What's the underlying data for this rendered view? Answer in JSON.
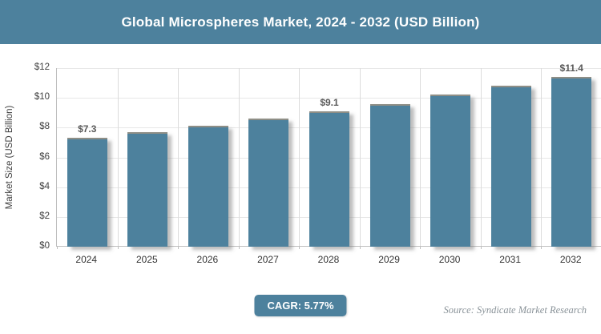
{
  "header": {
    "title": "Global Microspheres Market, 2024 - 2032 (USD Billion)"
  },
  "chart_data": {
    "type": "bar",
    "title": "Global Microspheres Market, 2024 - 2032 (USD Billion)",
    "categories": [
      "2024",
      "2025",
      "2026",
      "2027",
      "2028",
      "2029",
      "2030",
      "2031",
      "2032"
    ],
    "values": [
      7.3,
      7.7,
      8.1,
      8.6,
      9.1,
      9.6,
      10.2,
      10.8,
      11.4
    ],
    "bar_labels": [
      "$7.3",
      "",
      "",
      "",
      "$9.1",
      "",
      "",
      "",
      "$11.4"
    ],
    "ylabel": "Market Size (USD Billion)",
    "xlabel": "",
    "ylim": [
      0,
      12
    ],
    "ytick_step": 2,
    "ytick_labels": [
      "$0",
      "$2",
      "$4",
      "$6",
      "$8",
      "$10",
      "$12"
    ],
    "grid": true,
    "legend": "none",
    "bar_color": "#4d819d"
  },
  "footer": {
    "cagr_badge": "CAGR: 5.77%",
    "source": "Source: Syndicate Market Research"
  },
  "colors": {
    "accent": "#4d819d",
    "bar_label": "#595959",
    "axis_text": "#3f3f3f",
    "source_text": "#8a9399"
  }
}
